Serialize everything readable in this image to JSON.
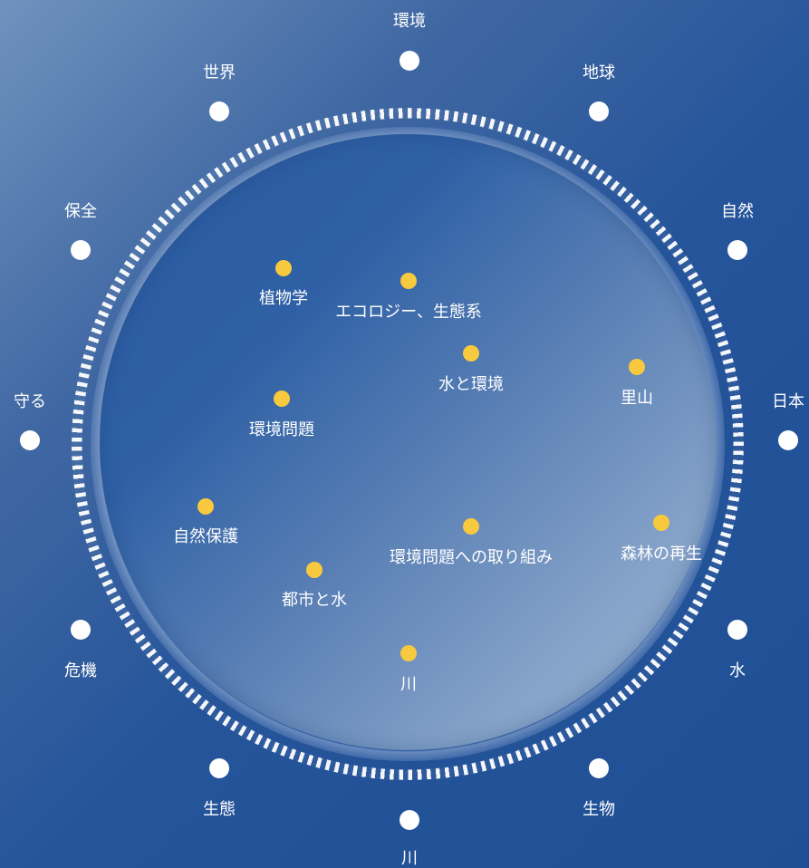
{
  "outer_topics": [
    {
      "label": "環境"
    },
    {
      "label": "地球"
    },
    {
      "label": "自然"
    },
    {
      "label": "日本"
    },
    {
      "label": "水"
    },
    {
      "label": "生物"
    },
    {
      "label": "川"
    },
    {
      "label": "生態"
    },
    {
      "label": "危機"
    },
    {
      "label": "守る"
    },
    {
      "label": "保全"
    },
    {
      "label": "世界"
    }
  ],
  "inner_topics": [
    {
      "label": "植物学"
    },
    {
      "label": "エコロジー、生態系"
    },
    {
      "label": "水と環境"
    },
    {
      "label": "里山"
    },
    {
      "label": "環境問題"
    },
    {
      "label": "自然保護"
    },
    {
      "label": "環境問題への取り組み"
    },
    {
      "label": "森林の再生"
    },
    {
      "label": "都市と水"
    },
    {
      "label": "川"
    }
  ],
  "colors": {
    "outer_dot": "#ffffff",
    "inner_dot": "#f7c93e",
    "background": "#25549a"
  }
}
